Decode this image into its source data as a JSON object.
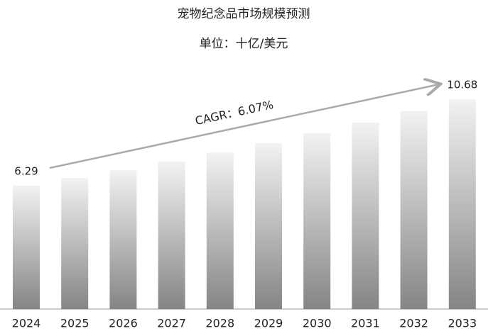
{
  "chart_data": {
    "type": "bar",
    "title": "宠物纪念品市场规模预测",
    "subtitle": "单位：十亿/美元",
    "annotation": "CAGR：6.07%",
    "categories": [
      "2024",
      "2025",
      "2026",
      "2027",
      "2028",
      "2029",
      "2030",
      "2031",
      "2032",
      "2033"
    ],
    "values": [
      6.29,
      6.67,
      7.08,
      7.51,
      7.96,
      8.45,
      8.96,
      9.5,
      10.08,
      10.68
    ]
  }
}
